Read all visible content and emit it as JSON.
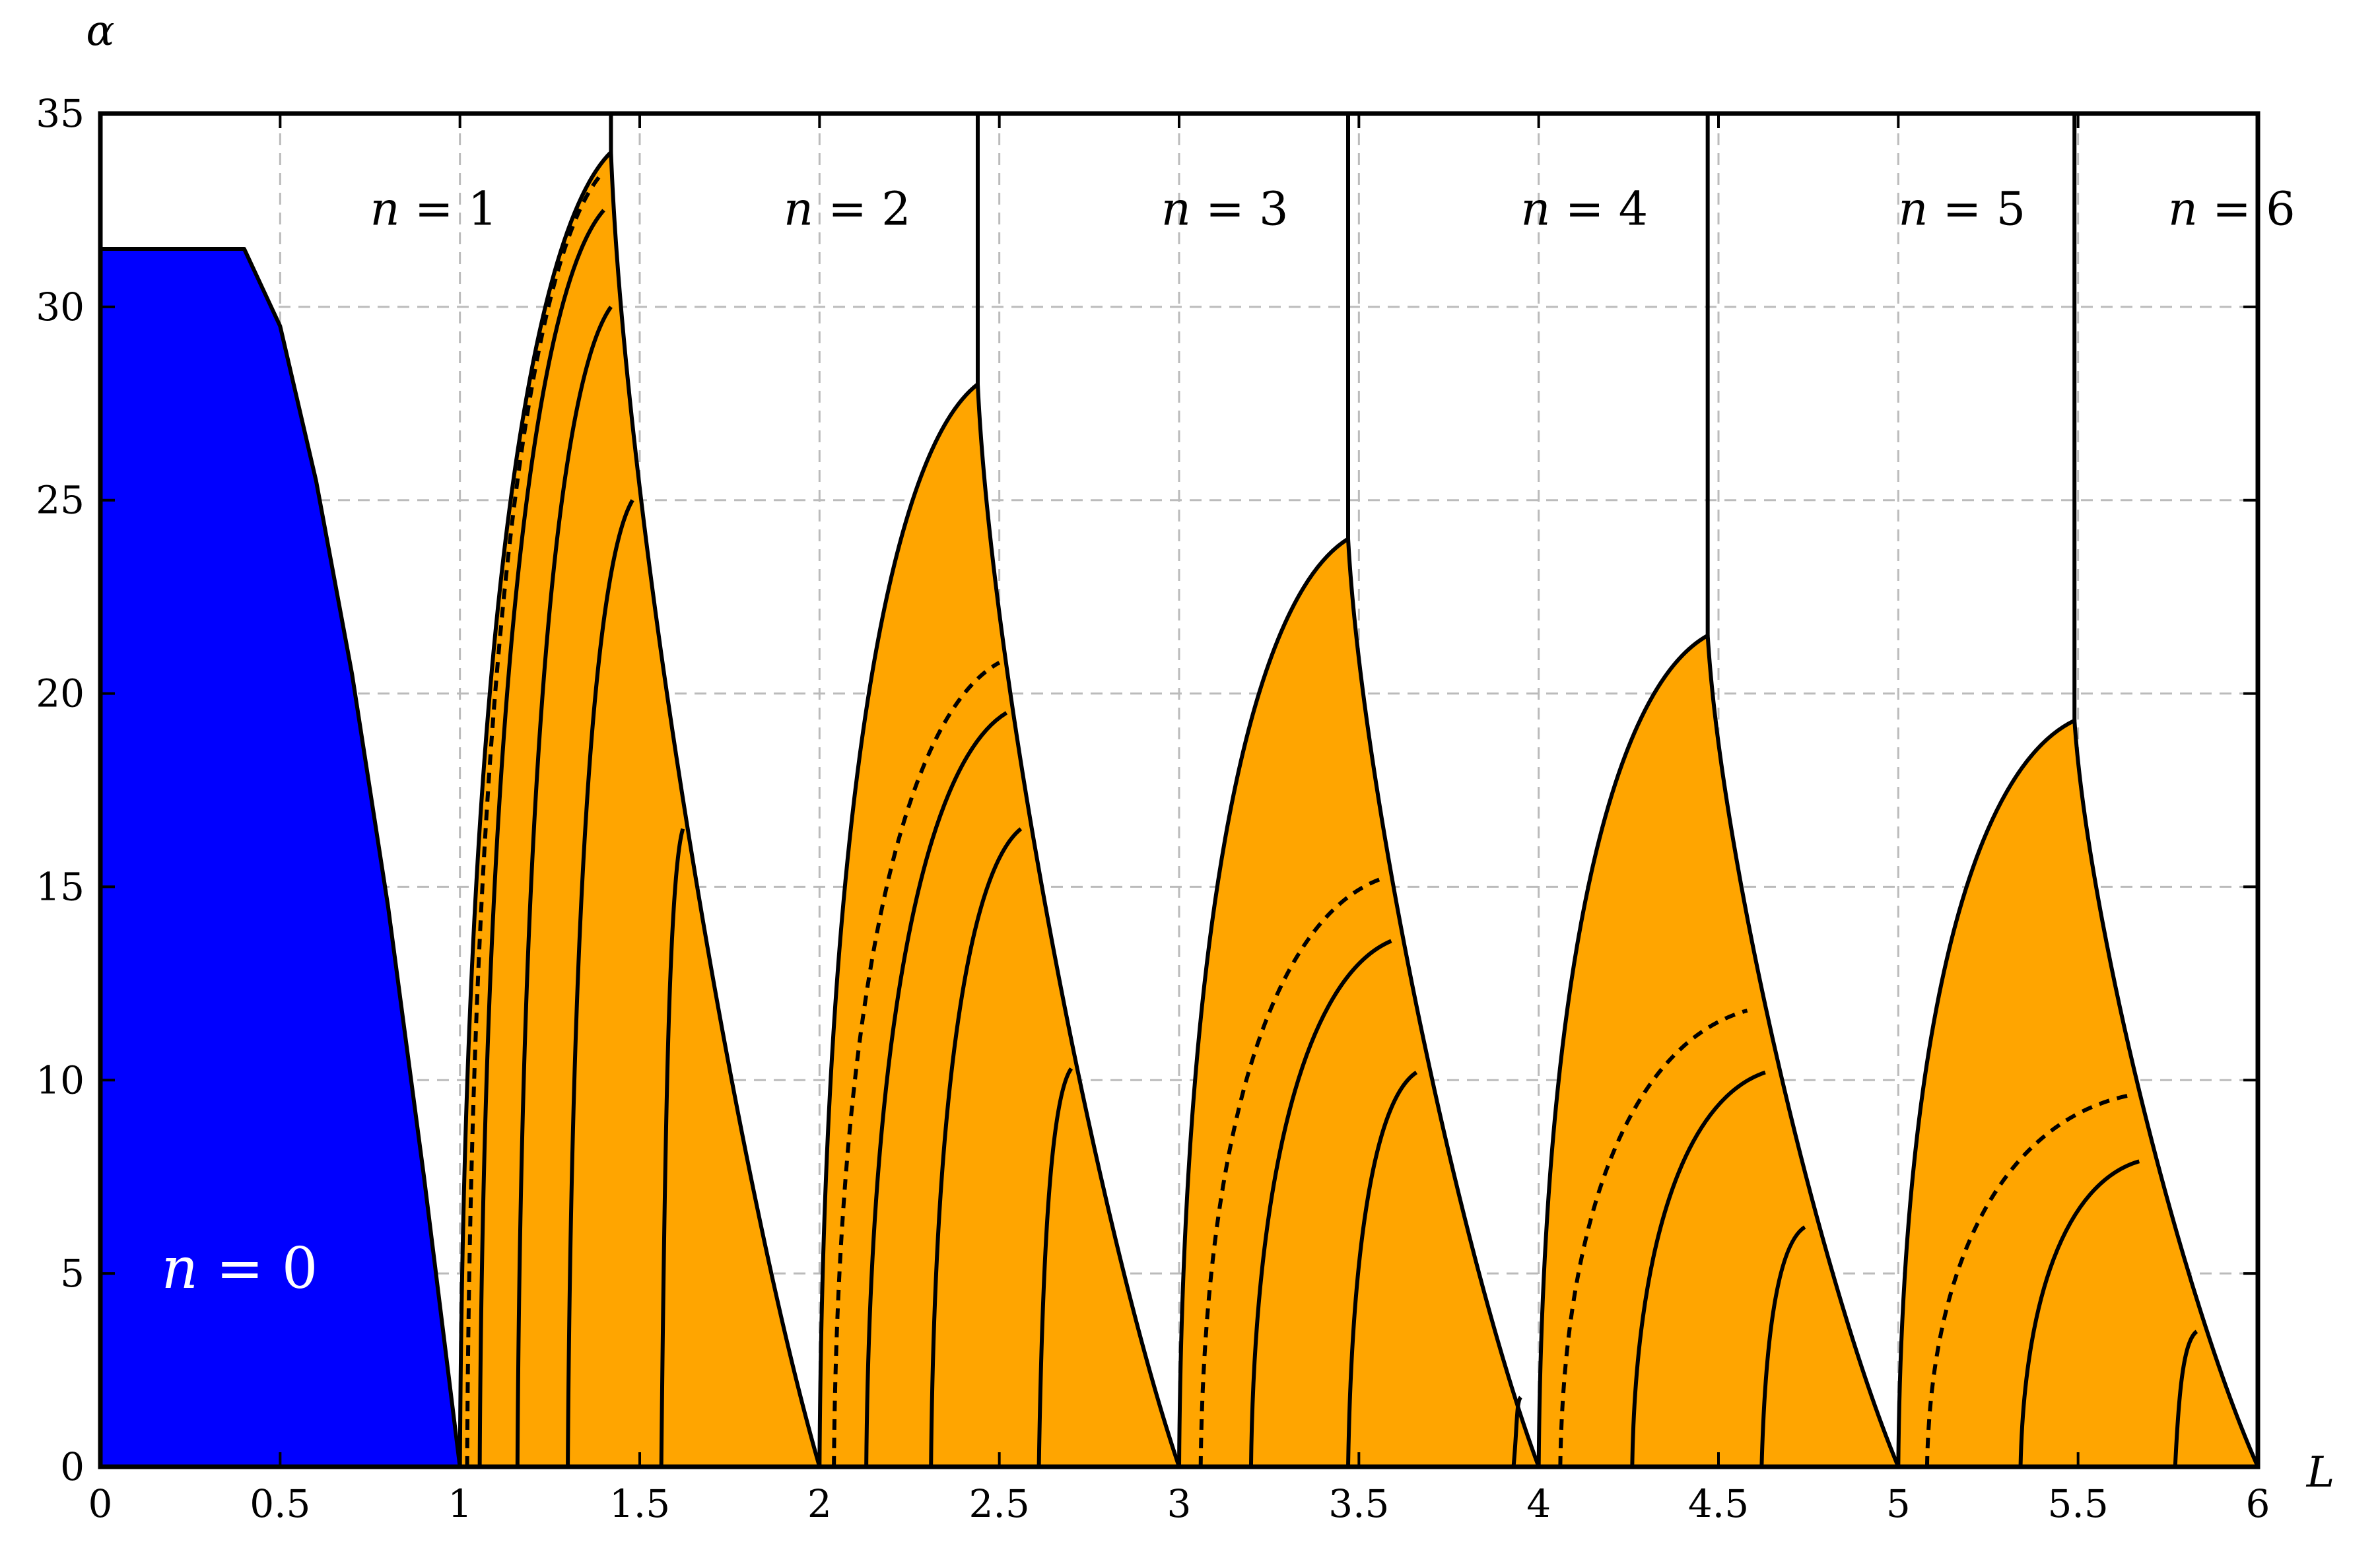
{
  "chart_data": {
    "type": "area",
    "title": "",
    "xlabel": "L",
    "ylabel": "α",
    "xlim": [
      0,
      6
    ],
    "ylim": [
      0,
      35
    ],
    "xticks": [
      "0",
      "0.5",
      "1",
      "1.5",
      "2",
      "2.5",
      "3",
      "3.5",
      "4",
      "4.5",
      "5",
      "5.5",
      "6"
    ],
    "yticks": [
      "0",
      "5",
      "10",
      "15",
      "20",
      "25",
      "30",
      "35"
    ],
    "grid": true,
    "grid_style": "dashed",
    "colors": {
      "n0_fill": "#0000ff",
      "lobe_fill": "#ffa500",
      "line": "#000000",
      "grid": "#bbbbbb"
    },
    "region_labels": [
      {
        "var": "n",
        "text": " = 0",
        "x": 0.17,
        "y": 5
      },
      {
        "var": "n",
        "text": " = 1",
        "x": 0.75,
        "y": 32.5
      },
      {
        "var": "n",
        "text": " = 2",
        "x": 1.9,
        "y": 32.5
      },
      {
        "var": "n",
        "text": " = 3",
        "x": 2.95,
        "y": 32.5
      },
      {
        "var": "n",
        "text": " = 4",
        "x": 3.95,
        "y": 32.5
      },
      {
        "var": "n",
        "text": " = 5",
        "x": 5.0,
        "y": 32.5
      },
      {
        "var": "n",
        "text": " = 6",
        "x": 5.75,
        "y": 32.5
      }
    ],
    "n0_region": {
      "plateau": {
        "x": [
          0,
          0.4
        ],
        "alpha": 31.5
      },
      "boundary": [
        [
          0.4,
          31.5
        ],
        [
          0.5,
          29.5
        ],
        [
          0.6,
          25.5
        ],
        [
          0.7,
          20.5
        ],
        [
          0.8,
          14.5
        ],
        [
          0.9,
          7.5
        ],
        [
          1.0,
          0
        ]
      ]
    },
    "lobes": [
      {
        "n": 1,
        "start": 1.0,
        "peak": [
          1.42,
          34.0
        ],
        "end": 2.0,
        "vertical_line_x": 1.42,
        "solid_curves": [
          {
            "start": 1.055,
            "end": [
              1.4,
              32.5
            ]
          },
          {
            "start": 1.16,
            "end": [
              1.42,
              30.0
            ]
          },
          {
            "start": 1.3,
            "end": [
              1.48,
              25.0
            ]
          },
          {
            "start": 1.56,
            "end": [
              1.62,
              16.5
            ]
          }
        ],
        "dashed_curve": {
          "start": 1.02,
          "end": [
            1.4,
            33.5
          ]
        }
      },
      {
        "n": 2,
        "start": 2.0,
        "peak": [
          2.44,
          28.0
        ],
        "end": 3.0,
        "vertical_line_x": 2.44,
        "solid_curves": [
          {
            "start": 2.13,
            "end": [
              2.52,
              19.5
            ]
          },
          {
            "start": 2.31,
            "end": [
              2.56,
              16.5
            ]
          },
          {
            "start": 2.61,
            "end": [
              2.7,
              10.3
            ]
          }
        ],
        "dashed_curve": {
          "start": 2.04,
          "end": [
            2.5,
            20.8
          ]
        }
      },
      {
        "n": 3,
        "start": 3.0,
        "peak": [
          3.47,
          24.0
        ],
        "end": 4.0,
        "vertical_line_x": 3.47,
        "solid_curves": [
          {
            "start": 3.2,
            "end": [
              3.59,
              13.6
            ]
          },
          {
            "start": 3.47,
            "end": [
              3.66,
              10.2
            ]
          },
          {
            "start": 3.93,
            "end": [
              3.95,
              1.8
            ]
          }
        ],
        "dashed_curve": {
          "start": 3.06,
          "end": [
            3.56,
            15.2
          ]
        }
      },
      {
        "n": 4,
        "start": 4.0,
        "peak": [
          4.47,
          21.5
        ],
        "end": 5.0,
        "vertical_line_x": 4.47,
        "solid_curves": [
          {
            "start": 4.26,
            "end": [
              4.63,
              10.2
            ]
          },
          {
            "start": 4.62,
            "end": [
              4.74,
              6.2
            ]
          }
        ],
        "dashed_curve": {
          "start": 4.06,
          "end": [
            4.58,
            11.8
          ]
        }
      },
      {
        "n": 5,
        "start": 5.0,
        "peak": [
          5.49,
          19.3
        ],
        "end": 6.0,
        "vertical_line_x": 5.49,
        "solid_curves": [
          {
            "start": 5.34,
            "end": [
              5.67,
              7.9
            ]
          },
          {
            "start": 5.77,
            "end": [
              5.83,
              3.5
            ]
          }
        ],
        "dashed_curve": {
          "start": 5.08,
          "end": [
            5.64,
            9.6
          ]
        }
      }
    ]
  }
}
